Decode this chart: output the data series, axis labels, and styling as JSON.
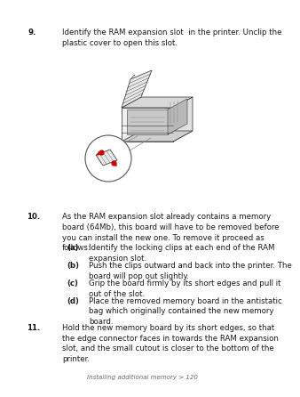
{
  "bg_color": "#ffffff",
  "text_color": "#1a1a1a",
  "footer_color": "#666666",
  "footer_text": "Installing additional memory > 120",
  "font_size": 6.2,
  "sub_font_size": 6.2,
  "footer_font_size": 5.0,
  "item9": {
    "num": "9.",
    "text": "Identify the RAM expansion slot  in the printer. Unclip the\nplastic cover to open this slot."
  },
  "item10": {
    "num": "10.",
    "text": "As the RAM expansion slot already contains a memory\nboard (64Mb), this board will have to be removed before\nyou can install the new one. To remove it proceed as\nfollows:",
    "subitems": [
      {
        "label": "(a)",
        "text": "Identify the locking clips at each end of the RAM\nexpansion slot."
      },
      {
        "label": "(b)",
        "text": "Push the clips outward and back into the printer. The\nboard will pop out slightly."
      },
      {
        "label": "(c)",
        "text": "Grip the board firmly by its short edges and pull it\nout of the slot."
      },
      {
        "label": "(d)",
        "text": "Place the removed memory board in the antistatic\nbag which originally contained the new memory\nboard."
      }
    ]
  },
  "item11": {
    "num": "11.",
    "text": "Hold the new memory board by its short edges, so that\nthe edge connector faces in towards the RAM expansion\nslot, and the small cutout is closer to the bottom of the\nprinter."
  }
}
